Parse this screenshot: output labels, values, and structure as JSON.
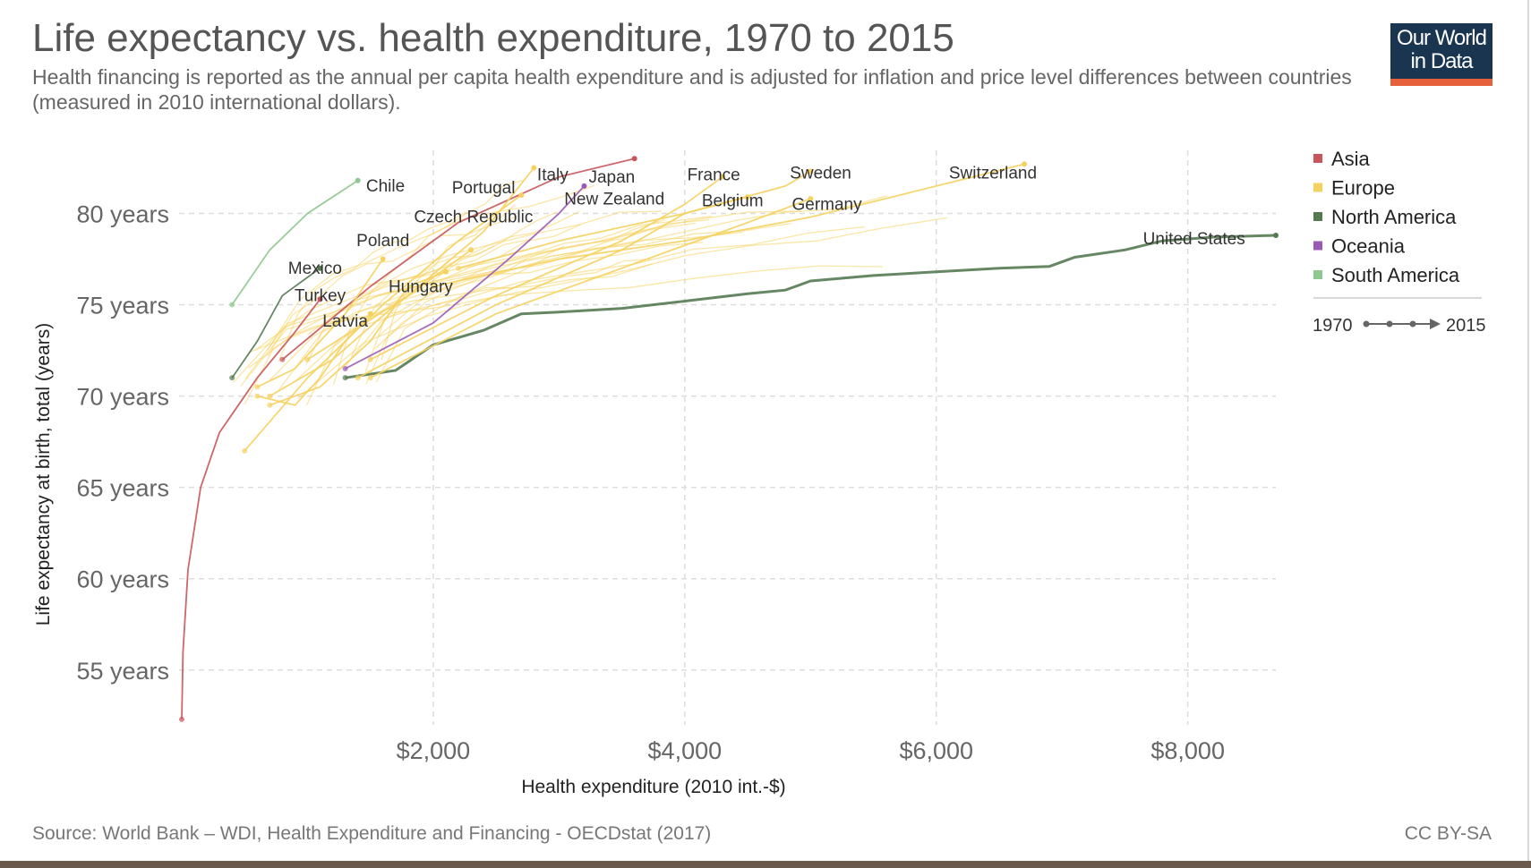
{
  "title": "Life expectancy vs. health expenditure, 1970 to 2015",
  "subtitle": "Health financing is reported as the annual per capita health expenditure and is adjusted for inflation and price level differences between countries (measured in 2010 international dollars).",
  "logo": {
    "line1": "Our World",
    "line2": "in Data"
  },
  "source": "Source: World Bank – WDI, Health Expenditure and Financing - OECDstat (2017)",
  "license": "CC BY-SA",
  "colors": {
    "Asia": "#c9555b",
    "Europe": "#f5d25f",
    "North America": "#557a52",
    "Oceania": "#9b59b6",
    "South America": "#8ec78f"
  },
  "legend": {
    "items": [
      "Asia",
      "Europe",
      "North America",
      "Oceania",
      "South America"
    ],
    "time_start": "1970",
    "time_end": "2015"
  },
  "chart_data": {
    "type": "line",
    "xlabel": "Health expenditure (2010 int.-$)",
    "ylabel": "Life expectancy at birth, total (years)",
    "xlim": [
      0,
      8700
    ],
    "ylim": [
      52,
      83.6
    ],
    "x_ticks": [
      {
        "value": 2000,
        "label": "$2,000"
      },
      {
        "value": 4000,
        "label": "$4,000"
      },
      {
        "value": 6000,
        "label": "$6,000"
      },
      {
        "value": 8000,
        "label": "$8,000"
      }
    ],
    "y_ticks": [
      {
        "value": 55,
        "label": "55 years"
      },
      {
        "value": 60,
        "label": "60 years"
      },
      {
        "value": 65,
        "label": "65 years"
      },
      {
        "value": 70,
        "label": "70 years"
      },
      {
        "value": 75,
        "label": "75 years"
      },
      {
        "value": 80,
        "label": "80 years"
      }
    ],
    "grid": true,
    "legend_position": "right",
    "series": [
      {
        "name": "United States",
        "region": "North America",
        "points": [
          [
            1300,
            71
          ],
          [
            1700,
            71.4
          ],
          [
            2000,
            72.8
          ],
          [
            2400,
            73.6
          ],
          [
            2700,
            74.5
          ],
          [
            3000,
            74.6
          ],
          [
            3500,
            74.8
          ],
          [
            4000,
            75.2
          ],
          [
            4500,
            75.6
          ],
          [
            4800,
            75.8
          ],
          [
            5000,
            76.3
          ],
          [
            5500,
            76.6
          ],
          [
            6000,
            76.8
          ],
          [
            6500,
            77
          ],
          [
            6900,
            77.1
          ],
          [
            7100,
            77.6
          ],
          [
            7500,
            78
          ],
          [
            7800,
            78.5
          ],
          [
            8200,
            78.7
          ],
          [
            8700,
            78.8
          ]
        ]
      },
      {
        "name": "Switzerland",
        "region": "Europe",
        "points": [
          [
            2000,
            76
          ],
          [
            3000,
            77.5
          ],
          [
            4000,
            78.5
          ],
          [
            5000,
            79.8
          ],
          [
            6000,
            81.5
          ],
          [
            6700,
            82.7
          ]
        ]
      },
      {
        "name": "Sweden",
        "region": "Europe",
        "points": [
          [
            2200,
            77
          ],
          [
            3000,
            78.5
          ],
          [
            4000,
            80
          ],
          [
            4800,
            81.5
          ],
          [
            5000,
            82.3
          ]
        ]
      },
      {
        "name": "Germany",
        "region": "Europe",
        "points": [
          [
            1500,
            71
          ],
          [
            2500,
            74.5
          ],
          [
            3500,
            77
          ],
          [
            4500,
            79.5
          ],
          [
            5000,
            80.8
          ]
        ]
      },
      {
        "name": "France",
        "region": "Europe",
        "points": [
          [
            1500,
            72
          ],
          [
            2500,
            75.5
          ],
          [
            3500,
            78.5
          ],
          [
            4000,
            80.5
          ],
          [
            4300,
            82
          ]
        ]
      },
      {
        "name": "Belgium",
        "region": "Europe",
        "points": [
          [
            1400,
            71
          ],
          [
            2500,
            75
          ],
          [
            3500,
            78
          ],
          [
            4000,
            80
          ],
          [
            4500,
            80.9
          ]
        ]
      },
      {
        "name": "Japan",
        "region": "Asia",
        "points": [
          [
            800,
            72
          ],
          [
            1500,
            76
          ],
          [
            2200,
            79.5
          ],
          [
            3000,
            82
          ],
          [
            3600,
            83
          ]
        ]
      },
      {
        "name": "Italy",
        "region": "Europe",
        "points": [
          [
            1000,
            72
          ],
          [
            1800,
            75.5
          ],
          [
            2400,
            79
          ],
          [
            2800,
            82.5
          ]
        ]
      },
      {
        "name": "New Zealand",
        "region": "Oceania",
        "points": [
          [
            1300,
            71.5
          ],
          [
            2000,
            74
          ],
          [
            2600,
            77.5
          ],
          [
            3000,
            80
          ],
          [
            3200,
            81.5
          ]
        ]
      },
      {
        "name": "Portugal",
        "region": "Europe",
        "points": [
          [
            500,
            67
          ],
          [
            1000,
            71
          ],
          [
            1600,
            75
          ],
          [
            2200,
            78.5
          ],
          [
            2700,
            81
          ]
        ]
      },
      {
        "name": "Czech Republic",
        "region": "Europe",
        "points": [
          [
            700,
            70
          ],
          [
            1200,
            72
          ],
          [
            1700,
            75
          ],
          [
            2300,
            78
          ]
        ]
      },
      {
        "name": "Chile",
        "region": "South America",
        "points": [
          [
            400,
            75
          ],
          [
            700,
            78
          ],
          [
            1000,
            80
          ],
          [
            1400,
            81.8
          ]
        ]
      },
      {
        "name": "Poland",
        "region": "Europe",
        "points": [
          [
            600,
            70.5
          ],
          [
            900,
            71.5
          ],
          [
            1300,
            74.5
          ],
          [
            1600,
            77.5
          ]
        ]
      },
      {
        "name": "Mexico",
        "region": "North America",
        "points": [
          [
            400,
            71
          ],
          [
            600,
            73
          ],
          [
            800,
            75.5
          ],
          [
            1000,
            76.5
          ],
          [
            1100,
            77
          ]
        ]
      },
      {
        "name": "Turkey",
        "region": "Asia",
        "points": [
          [
            0,
            52.3
          ],
          [
            10,
            56
          ],
          [
            50,
            60.5
          ],
          [
            150,
            65
          ],
          [
            300,
            68
          ],
          [
            600,
            71
          ],
          [
            900,
            73.5
          ],
          [
            1100,
            75.3
          ]
        ]
      },
      {
        "name": "Hungary",
        "region": "Europe",
        "points": [
          [
            700,
            69.5
          ],
          [
            1100,
            70.5
          ],
          [
            1500,
            73
          ],
          [
            1800,
            76
          ],
          [
            2100,
            76.8
          ]
        ]
      },
      {
        "name": "Latvia",
        "region": "Europe",
        "points": [
          [
            600,
            70
          ],
          [
            900,
            69.5
          ],
          [
            1100,
            71
          ],
          [
            1300,
            73
          ],
          [
            1500,
            74.5
          ]
        ]
      }
    ],
    "labels": [
      {
        "text": "Chile",
        "x": 1620,
        "y": 81.2
      },
      {
        "text": "Portugal",
        "x": 2400,
        "y": 81.1
      },
      {
        "text": "Italy",
        "x": 2950,
        "y": 81.8
      },
      {
        "text": "Japan",
        "x": 3420,
        "y": 81.7
      },
      {
        "text": "France",
        "x": 4230,
        "y": 81.8
      },
      {
        "text": "Sweden",
        "x": 5080,
        "y": 81.9
      },
      {
        "text": "Switzerland",
        "x": 6450,
        "y": 81.9
      },
      {
        "text": "New Zealand",
        "x": 3440,
        "y": 80.5
      },
      {
        "text": "Belgium",
        "x": 4380,
        "y": 80.4
      },
      {
        "text": "Germany",
        "x": 5130,
        "y": 80.2
      },
      {
        "text": "Czech Republic",
        "x": 2320,
        "y": 79.5
      },
      {
        "text": "Poland",
        "x": 1600,
        "y": 78.2
      },
      {
        "text": "United States",
        "x": 8050,
        "y": 78.3
      },
      {
        "text": "Mexico",
        "x": 1060,
        "y": 76.7
      },
      {
        "text": "Hungary",
        "x": 1900,
        "y": 75.7
      },
      {
        "text": "Turkey",
        "x": 1100,
        "y": 75.2
      },
      {
        "text": "Latvia",
        "x": 1300,
        "y": 73.8
      }
    ]
  }
}
